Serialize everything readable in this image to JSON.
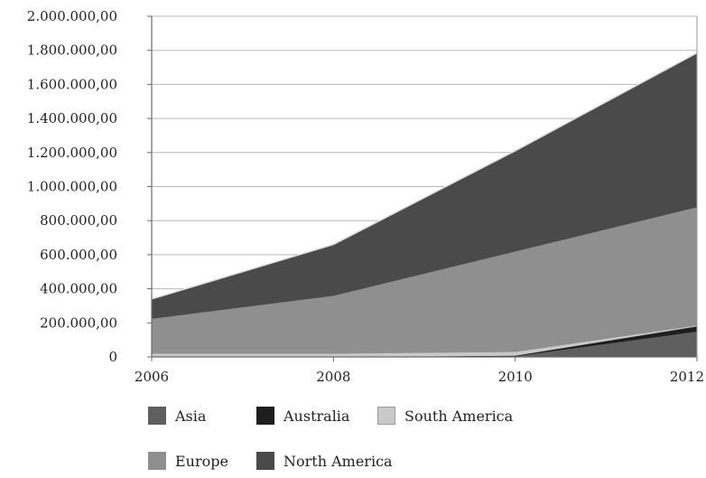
{
  "chart_data": {
    "type": "area",
    "stacked": true,
    "x": [
      2006,
      2008,
      2010,
      2012
    ],
    "xlabels": [
      "2006",
      "2008",
      "2010",
      "2012"
    ],
    "ylim": [
      0,
      2000000
    ],
    "yticks": [
      0,
      200000,
      400000,
      600000,
      800000,
      1000000,
      1200000,
      1400000,
      1600000,
      1800000,
      2000000
    ],
    "ytick_labels": [
      "0",
      "200.000,00",
      "400.000,00",
      "600.000,00",
      "800.000,00",
      "1.000.000,00",
      "1.200.000,00",
      "1.400.000,00",
      "1.600.000,00",
      "1.800.000,00",
      "2.000.000,00"
    ],
    "grid": "horizontal",
    "legend_position": "bottom",
    "series": [
      {
        "name": "Asia",
        "color": "#5f5f5f",
        "values": [
          0,
          0,
          5000,
          150000
        ]
      },
      {
        "name": "Australia",
        "color": "#1e1e1e",
        "values": [
          0,
          0,
          3000,
          30000
        ]
      },
      {
        "name": "South America",
        "color": "#c9c9c9",
        "values": [
          20000,
          20000,
          22000,
          5000
        ]
      },
      {
        "name": "Europe",
        "color": "#8f8f8f",
        "values": [
          205000,
          340000,
          590000,
          695000
        ]
      },
      {
        "name": "North America",
        "color": "#4a4a4a",
        "values": [
          115000,
          300000,
          590000,
          905000
        ]
      }
    ]
  }
}
